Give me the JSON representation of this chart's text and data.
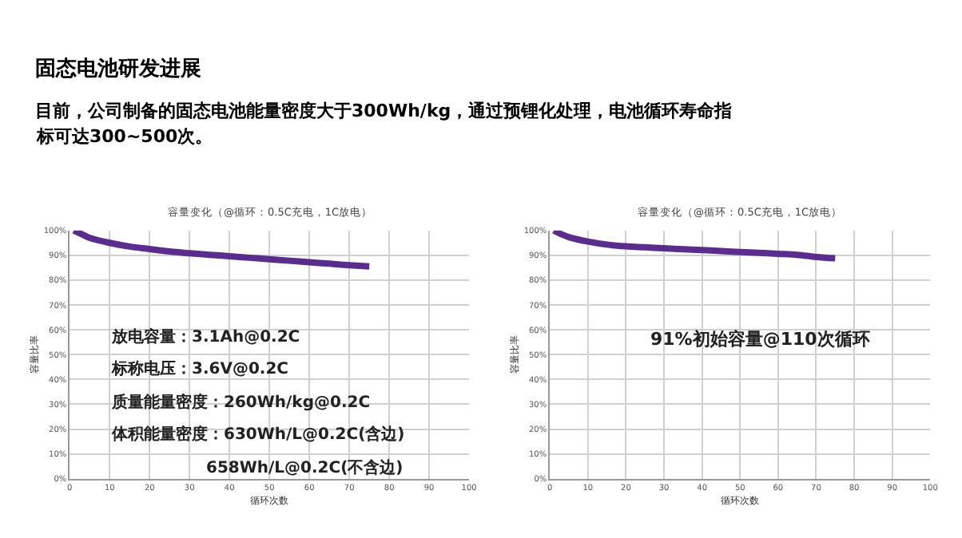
{
  "chart_data": [
    {
      "type": "other",
      "title": "固态电池研发进展",
      "annotations": [
        "目前，公司制备的固态电池能量密度大于300Wh/kg，通过预锂化处理，电池循环寿命指",
        "标可达300~500次。"
      ]
    },
    {
      "type": "line",
      "title": "容量变化（@循环：0.5C充电，1C放电）",
      "xlabel": "循环次数",
      "ylabel": "容量比率",
      "x": [
        1,
        3,
        5,
        10,
        15,
        20,
        25,
        30,
        35,
        40,
        45,
        50,
        55,
        60,
        65,
        70,
        75
      ],
      "series": [
        {
          "color": "#5b2c8f",
          "values": [
            100,
            98.5,
            97,
            95,
            93.5,
            92.5,
            91.5,
            90.8,
            90.2,
            89.6,
            89,
            88.4,
            87.8,
            87.2,
            86.6,
            86,
            85.5
          ]
        }
      ],
      "xlim": [
        0,
        100
      ],
      "xticks": [
        0,
        10,
        20,
        30,
        40,
        50,
        60,
        70,
        80,
        90,
        100
      ],
      "ylim": [
        0,
        100
      ],
      "yticks": [
        {
          "value": 0,
          "label": "0%"
        },
        {
          "value": 10,
          "label": "10%"
        },
        {
          "value": 20,
          "label": "20%"
        },
        {
          "value": 30,
          "label": "30%"
        },
        {
          "value": 40,
          "label": "40%"
        },
        {
          "value": 50,
          "label": "50%"
        },
        {
          "value": 60,
          "label": "60%"
        },
        {
          "value": 70,
          "label": "70%"
        },
        {
          "value": 80,
          "label": "80%"
        },
        {
          "value": 90,
          "label": "90%"
        },
        {
          "value": 100,
          "label": "100%"
        }
      ],
      "grid": true,
      "marker": "none",
      "line_style": "solid",
      "annotations": [
        "放电容量：3.1Ah@0.2C",
        "标称电压：3.6V@0.2C",
        "质量能量密度：260Wh/kg@0.2C",
        "体积能量密度：630Wh/L@0.2C(含边)",
        "658Wh/L@0.2C(不含边)"
      ]
    },
    {
      "type": "line",
      "title": "容量变化（@循环：0.5C充电，1C放电）",
      "xlabel": "循环次数",
      "ylabel": "容量比率",
      "x": [
        1,
        3,
        5,
        10,
        15,
        20,
        25,
        30,
        35,
        40,
        45,
        50,
        55,
        60,
        65,
        70,
        75
      ],
      "series": [
        {
          "color": "#5b2c8f",
          "values": [
            100,
            98.5,
            97.3,
            95.5,
            94.3,
            93.6,
            93.2,
            92.8,
            92.4,
            92.1,
            91.7,
            91.3,
            91,
            90.6,
            90.2,
            89.3,
            88.8
          ]
        }
      ],
      "xlim": [
        0,
        100
      ],
      "xticks": [
        0,
        10,
        20,
        30,
        40,
        50,
        60,
        70,
        80,
        90,
        100
      ],
      "ylim": [
        0,
        100
      ],
      "yticks": [
        {
          "value": 0,
          "label": "0%"
        },
        {
          "value": 10,
          "label": "10%"
        },
        {
          "value": 20,
          "label": "20%"
        },
        {
          "value": 30,
          "label": "30%"
        },
        {
          "value": 40,
          "label": "40%"
        },
        {
          "value": 50,
          "label": "50%"
        },
        {
          "value": 60,
          "label": "60%"
        },
        {
          "value": 70,
          "label": "70%"
        },
        {
          "value": 80,
          "label": "80%"
        },
        {
          "value": 90,
          "label": "90%"
        },
        {
          "value": 100,
          "label": "100%"
        }
      ],
      "grid": true,
      "marker": "none",
      "line_style": "solid",
      "annotations": [
        "91%初始容量@110次循环"
      ]
    }
  ]
}
